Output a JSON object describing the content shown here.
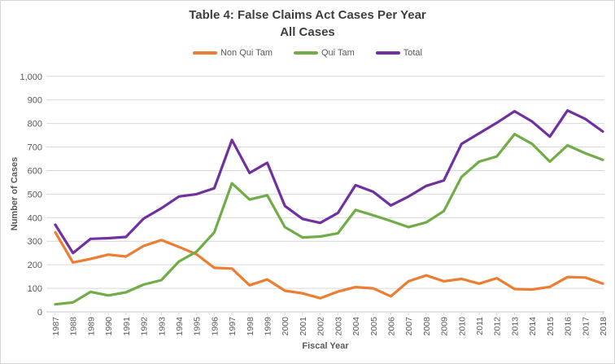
{
  "chart_data": {
    "type": "line",
    "title": "Table 4: False Claims Act Cases Per Year",
    "subtitle": "All Cases",
    "xlabel": "Fiscal Year",
    "ylabel": "Number of Cases",
    "ylim": [
      0,
      1000
    ],
    "ytick_step": 100,
    "ytick_labels": [
      "0",
      "100",
      "200",
      "300",
      "400",
      "500",
      "600",
      "700",
      "800",
      "900",
      "1,000"
    ],
    "grid": true,
    "legend_position": "top",
    "categories": [
      "1987",
      "1988",
      "1989",
      "1990",
      "1991",
      "1992",
      "1993",
      "1994",
      "1995",
      "1996",
      "1997",
      "1998",
      "1999",
      "2000",
      "2001",
      "2002",
      "2003",
      "2004",
      "2005",
      "2006",
      "2007",
      "2008",
      "2009",
      "2010",
      "2011",
      "2012",
      "2013",
      "2014",
      "2015",
      "2016",
      "2017",
      "2018"
    ],
    "series": [
      {
        "name": "Non Qui Tam",
        "color": "#ED7D31",
        "values": [
          338,
          210,
          225,
          243,
          235,
          280,
          305,
          276,
          244,
          187,
          184,
          113,
          138,
          90,
          79,
          58,
          86,
          105,
          100,
          66,
          130,
          155,
          130,
          140,
          120,
          143,
          97,
          95,
          106,
          148,
          146,
          120
        ]
      },
      {
        "name": "Qui Tam",
        "color": "#70AD47",
        "values": [
          32,
          40,
          85,
          70,
          83,
          116,
          135,
          214,
          256,
          338,
          546,
          477,
          495,
          360,
          316,
          320,
          334,
          433,
          410,
          386,
          360,
          380,
          428,
          573,
          638,
          660,
          755,
          713,
          638,
          707,
          674,
          646
        ]
      },
      {
        "name": "Total",
        "color": "#7030A0",
        "values": [
          370,
          250,
          310,
          313,
          318,
          396,
          440,
          490,
          500,
          525,
          730,
          590,
          633,
          450,
          395,
          378,
          420,
          538,
          510,
          452,
          490,
          535,
          558,
          713,
          758,
          803,
          852,
          808,
          744,
          855,
          820,
          766
        ]
      }
    ]
  },
  "colors": {
    "gridline": "#D9D9D9",
    "axis_line": "#C9C9C9",
    "axis_text": "#595959",
    "title_text": "#3F3F3F",
    "frame_border": "#D7D7D7",
    "background": "#FFFFFF"
  }
}
